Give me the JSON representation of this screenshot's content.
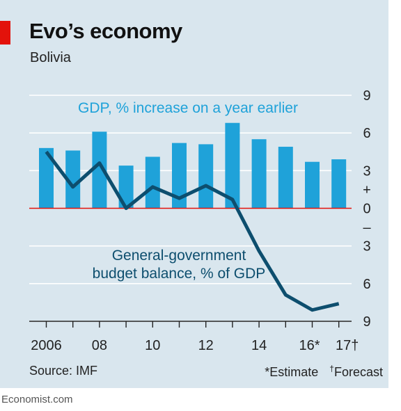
{
  "header": {
    "title": "Evo’s economy",
    "subtitle": "Bolivia"
  },
  "footer": {
    "source": "Source: IMF",
    "estimate_note": "*Estimate",
    "forecast_mark": "†",
    "forecast_note": "Forecast",
    "brand": "Economist.com"
  },
  "colors": {
    "bars": "#1fa2d9",
    "line": "#0d4e6e",
    "zero_line": "#e3120b",
    "background": "#d9e6ee"
  },
  "chart_data": {
    "type": "bar",
    "title": "Evo’s economy",
    "subtitle": "Bolivia",
    "categories": [
      2006,
      2007,
      2008,
      2009,
      2010,
      2011,
      2012,
      2013,
      2014,
      2015,
      2016,
      2017
    ],
    "x_tick_labels": [
      {
        "year": 2006,
        "label": "2006"
      },
      {
        "year": 2008,
        "label": "08"
      },
      {
        "year": 2010,
        "label": "10"
      },
      {
        "year": 2012,
        "label": "12"
      },
      {
        "year": 2014,
        "label": "14"
      },
      {
        "year": 2016,
        "label": "16*"
      },
      {
        "year": 2017,
        "label": "17†"
      }
    ],
    "y_ticks": [
      {
        "value": 9,
        "label": "9"
      },
      {
        "value": 6,
        "label": "6"
      },
      {
        "value": 3,
        "label": "3"
      },
      {
        "value": 1.5,
        "label": "+"
      },
      {
        "value": 0,
        "label": "0"
      },
      {
        "value": -1.5,
        "label": "–"
      },
      {
        "value": -3,
        "label": "3"
      },
      {
        "value": -6,
        "label": "6"
      },
      {
        "value": -9,
        "label": "9"
      }
    ],
    "ylim": [
      -9,
      9
    ],
    "grid": true,
    "series": [
      {
        "name": "GDP, % increase on a year earlier",
        "type": "bar",
        "values": [
          4.8,
          4.6,
          6.1,
          3.4,
          4.1,
          5.2,
          5.1,
          6.8,
          5.5,
          4.9,
          3.7,
          3.9
        ]
      },
      {
        "name": "General-government budget balance, % of GDP",
        "name_lines": [
          "General-government",
          "budget balance, % of GDP"
        ],
        "type": "line",
        "values": [
          4.5,
          1.7,
          3.6,
          0.0,
          1.7,
          0.8,
          1.8,
          0.7,
          -3.4,
          -6.9,
          -8.1,
          -7.6
        ]
      }
    ]
  }
}
